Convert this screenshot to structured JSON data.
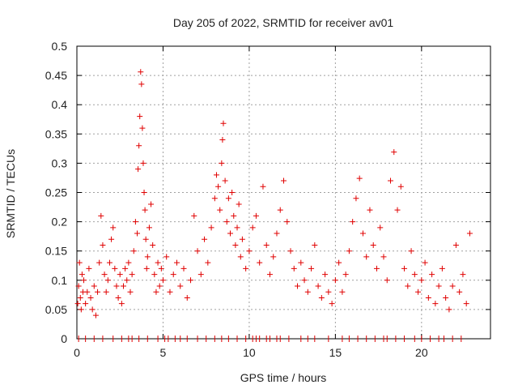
{
  "chart_data": {
    "type": "scatter",
    "title": "Day 205 of 2022, SRMTID for receiver av01",
    "xlabel": "GPS time / hours",
    "ylabel": "SRMTID / TECUs",
    "xlim": [
      0,
      24
    ],
    "ylim": [
      0,
      0.5
    ],
    "xticks": [
      0,
      5,
      10,
      15,
      20
    ],
    "yticks": [
      0,
      0.05,
      0.1,
      0.15,
      0.2,
      0.25,
      0.3,
      0.35,
      0.4,
      0.45,
      0.5
    ],
    "grid": true,
    "marker": "+",
    "color": "#e00000",
    "series": [
      {
        "name": "av01",
        "points": [
          [
            0.05,
            0.06
          ],
          [
            0.1,
            0.09
          ],
          [
            0.15,
            0.13
          ],
          [
            0.2,
            0.07
          ],
          [
            0.25,
            0.05
          ],
          [
            0.3,
            0.11
          ],
          [
            0.35,
            0.08
          ],
          [
            0.4,
            0.1
          ],
          [
            0.5,
            0.06
          ],
          [
            0.6,
            0.08
          ],
          [
            0.7,
            0.12
          ],
          [
            0.8,
            0.07
          ],
          [
            0.9,
            0.05
          ],
          [
            1.0,
            0.09
          ],
          [
            1.1,
            0.04
          ],
          [
            1.2,
            0.08
          ],
          [
            1.3,
            0.13
          ],
          [
            1.4,
            0.21
          ],
          [
            1.5,
            0.16
          ],
          [
            1.6,
            0.11
          ],
          [
            1.7,
            0.08
          ],
          [
            1.8,
            0.1
          ],
          [
            1.9,
            0.13
          ],
          [
            2.0,
            0.17
          ],
          [
            2.1,
            0.19
          ],
          [
            2.2,
            0.12
          ],
          [
            2.3,
            0.09
          ],
          [
            2.4,
            0.07
          ],
          [
            2.5,
            0.11
          ],
          [
            2.6,
            0.06
          ],
          [
            2.7,
            0.09
          ],
          [
            2.8,
            0.12
          ],
          [
            2.9,
            0.1
          ],
          [
            3.0,
            0.13
          ],
          [
            3.1,
            0.08
          ],
          [
            3.2,
            0.11
          ],
          [
            3.3,
            0.15
          ],
          [
            3.4,
            0.2
          ],
          [
            3.5,
            0.18
          ],
          [
            3.55,
            0.29
          ],
          [
            3.6,
            0.33
          ],
          [
            3.65,
            0.38
          ],
          [
            3.7,
            0.456
          ],
          [
            3.75,
            0.435
          ],
          [
            3.8,
            0.36
          ],
          [
            3.85,
            0.3
          ],
          [
            3.9,
            0.25
          ],
          [
            3.95,
            0.22
          ],
          [
            4.0,
            0.17
          ],
          [
            4.05,
            0.12
          ],
          [
            4.1,
            0.14
          ],
          [
            4.2,
            0.19
          ],
          [
            4.3,
            0.23
          ],
          [
            4.4,
            0.16
          ],
          [
            4.5,
            0.11
          ],
          [
            4.6,
            0.08
          ],
          [
            4.7,
            0.13
          ],
          [
            4.8,
            0.09
          ],
          [
            4.9,
            0.12
          ],
          [
            5.0,
            0.1
          ],
          [
            5.2,
            0.14
          ],
          [
            5.4,
            0.08
          ],
          [
            5.6,
            0.11
          ],
          [
            5.8,
            0.13
          ],
          [
            6.0,
            0.09
          ],
          [
            6.2,
            0.12
          ],
          [
            6.4,
            0.07
          ],
          [
            6.6,
            0.1
          ],
          [
            6.8,
            0.21
          ],
          [
            7.0,
            0.15
          ],
          [
            7.2,
            0.11
          ],
          [
            7.4,
            0.17
          ],
          [
            7.6,
            0.13
          ],
          [
            7.8,
            0.19
          ],
          [
            8.0,
            0.24
          ],
          [
            8.1,
            0.28
          ],
          [
            8.2,
            0.26
          ],
          [
            8.3,
            0.22
          ],
          [
            8.4,
            0.3
          ],
          [
            8.45,
            0.34
          ],
          [
            8.5,
            0.368
          ],
          [
            8.6,
            0.27
          ],
          [
            8.7,
            0.2
          ],
          [
            8.8,
            0.24
          ],
          [
            8.9,
            0.18
          ],
          [
            9.0,
            0.25
          ],
          [
            9.1,
            0.21
          ],
          [
            9.2,
            0.16
          ],
          [
            9.3,
            0.19
          ],
          [
            9.4,
            0.23
          ],
          [
            9.5,
            0.14
          ],
          [
            9.6,
            0.17
          ],
          [
            9.8,
            0.12
          ],
          [
            10.0,
            0.15
          ],
          [
            10.2,
            0.19
          ],
          [
            10.4,
            0.21
          ],
          [
            10.6,
            0.13
          ],
          [
            10.8,
            0.26
          ],
          [
            11.0,
            0.16
          ],
          [
            11.2,
            0.11
          ],
          [
            11.4,
            0.14
          ],
          [
            11.6,
            0.18
          ],
          [
            11.8,
            0.22
          ],
          [
            12.0,
            0.27
          ],
          [
            12.2,
            0.2
          ],
          [
            12.4,
            0.15
          ],
          [
            12.6,
            0.12
          ],
          [
            12.8,
            0.09
          ],
          [
            13.0,
            0.13
          ],
          [
            13.2,
            0.1
          ],
          [
            13.4,
            0.08
          ],
          [
            13.6,
            0.12
          ],
          [
            13.8,
            0.16
          ],
          [
            14.0,
            0.09
          ],
          [
            14.2,
            0.07
          ],
          [
            14.4,
            0.11
          ],
          [
            14.6,
            0.08
          ],
          [
            14.8,
            0.06
          ],
          [
            15.0,
            0.1
          ],
          [
            15.2,
            0.13
          ],
          [
            15.4,
            0.08
          ],
          [
            15.6,
            0.11
          ],
          [
            15.8,
            0.15
          ],
          [
            16.0,
            0.2
          ],
          [
            16.2,
            0.24
          ],
          [
            16.4,
            0.274
          ],
          [
            16.6,
            0.18
          ],
          [
            16.8,
            0.14
          ],
          [
            17.0,
            0.22
          ],
          [
            17.2,
            0.16
          ],
          [
            17.4,
            0.12
          ],
          [
            17.6,
            0.19
          ],
          [
            17.8,
            0.14
          ],
          [
            18.0,
            0.1
          ],
          [
            18.2,
            0.27
          ],
          [
            18.4,
            0.319
          ],
          [
            18.6,
            0.22
          ],
          [
            18.8,
            0.26
          ],
          [
            19.0,
            0.12
          ],
          [
            19.2,
            0.09
          ],
          [
            19.4,
            0.15
          ],
          [
            19.6,
            0.11
          ],
          [
            19.8,
            0.08
          ],
          [
            20.0,
            0.1
          ],
          [
            20.2,
            0.13
          ],
          [
            20.4,
            0.07
          ],
          [
            20.6,
            0.11
          ],
          [
            20.8,
            0.06
          ],
          [
            21.0,
            0.09
          ],
          [
            21.2,
            0.12
          ],
          [
            21.4,
            0.07
          ],
          [
            21.6,
            0.05
          ],
          [
            21.8,
            0.09
          ],
          [
            22.0,
            0.16
          ],
          [
            22.2,
            0.08
          ],
          [
            22.4,
            0.11
          ],
          [
            22.6,
            0.06
          ],
          [
            22.8,
            0.18
          ]
        ]
      }
    ],
    "zero_markers_x": [
      0.1,
      0.5,
      1.0,
      1.5,
      2.1,
      2.6,
      3.0,
      3.2,
      3.6,
      4.1,
      4.7,
      5.1,
      5.3,
      5.7,
      6.0,
      6.4,
      7.0,
      7.5,
      8.0,
      8.4,
      8.8,
      9.3,
      9.8,
      10.2,
      10.4,
      10.6,
      11.0,
      11.2,
      11.6,
      11.8,
      12.3,
      13.0,
      13.4,
      13.8,
      14.6,
      15.4,
      15.8,
      16.3,
      16.8,
      17.3,
      17.8,
      18.0,
      18.5,
      19.0,
      19.6,
      20.0,
      20.5,
      21.0,
      21.3,
      21.8,
      22.3
    ]
  }
}
